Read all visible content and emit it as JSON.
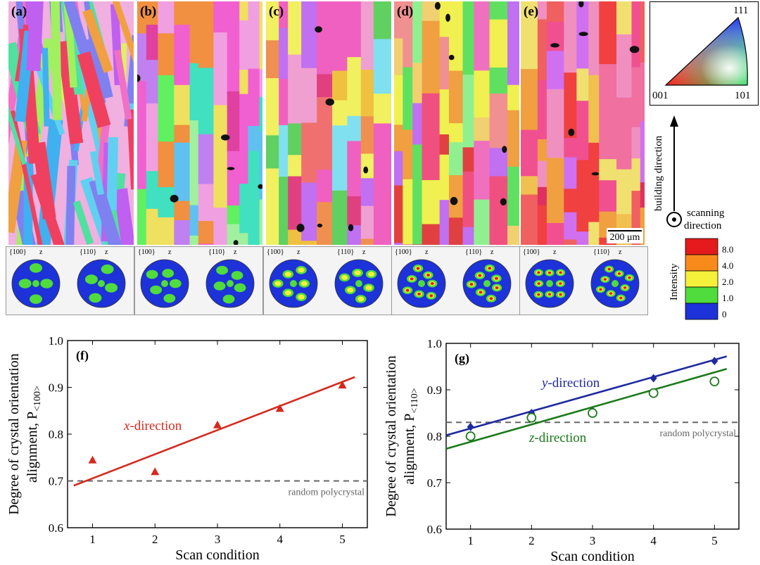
{
  "panels": [
    {
      "label": "(a)",
      "pf_labels": [
        "{100}",
        "z",
        "{110}",
        "z"
      ]
    },
    {
      "label": "(b)",
      "pf_labels": [
        "{100}",
        "z",
        "{110}",
        "z"
      ]
    },
    {
      "label": "(c)",
      "pf_labels": [
        "{100}",
        "z",
        "{110}",
        "z"
      ]
    },
    {
      "label": "(d)",
      "pf_labels": [
        "{100}",
        "z",
        "{110}",
        "z"
      ]
    },
    {
      "label": "(e)",
      "pf_labels": [
        "{100}",
        "z",
        "{110}",
        "z"
      ]
    }
  ],
  "scale_bar": "200 μm",
  "ipf_key": {
    "corner_top": "111",
    "corner_left": "001",
    "corner_right": "101"
  },
  "direction_key": {
    "building": "building direction",
    "scanning_line1": "scanning",
    "scanning_line2": "direction"
  },
  "intensity_legend": {
    "title": "Intensity",
    "levels": [
      "8.0",
      "4.0",
      "2.0",
      "1.0",
      "0"
    ],
    "colors": [
      "#e41a1c",
      "#f88a1c",
      "#f5f03a",
      "#4fdc3c",
      "#1d32d8"
    ]
  },
  "chart_data": [
    {
      "type": "scatter",
      "panel_label": "(f)",
      "xlabel": "Scan condition",
      "ylabel_line1": "Degree of crystal orientation",
      "ylabel_line2": "alignment, P",
      "ylabel_sub": "<100>",
      "xlim": [
        0.6,
        5.4
      ],
      "ylim": [
        0.6,
        1.0
      ],
      "xticks": [
        1,
        2,
        3,
        4,
        5
      ],
      "yticks": [
        0.6,
        0.7,
        0.8,
        0.9,
        1.0
      ],
      "ytick_labels": [
        "0.6",
        "0.7",
        "0.8",
        "0.9",
        "1.0"
      ],
      "series": [
        {
          "name": "x-direction",
          "marker": "triangle",
          "color": "#d42a1e",
          "x": [
            1,
            2,
            3,
            4,
            5
          ],
          "y": [
            0.745,
            0.72,
            0.82,
            0.855,
            0.905
          ],
          "fit": [
            [
              0.7,
              0.69
            ],
            [
              5.2,
              0.922
            ]
          ]
        }
      ],
      "reference": {
        "label": "random polycrystal",
        "y": 0.7,
        "color": "#666666"
      }
    },
    {
      "type": "scatter",
      "panel_label": "(g)",
      "xlabel": "Scan condition",
      "ylabel_line1": "Degree of crystal orientation",
      "ylabel_line2": "alignment, P",
      "ylabel_sub": "<110>",
      "xlim": [
        0.6,
        5.4
      ],
      "ylim": [
        0.6,
        1.0
      ],
      "xticks": [
        1,
        2,
        3,
        4,
        5
      ],
      "yticks": [
        0.6,
        0.7,
        0.8,
        0.9,
        1.0
      ],
      "ytick_labels": [
        "0.6",
        "0.7",
        "0.8",
        "0.9",
        "1.0"
      ],
      "series": [
        {
          "name": "y-direction",
          "marker": "diamond",
          "color": "#1f2aa0",
          "x": [
            1,
            2,
            3,
            4,
            5
          ],
          "y": [
            0.82,
            0.85,
            0.855,
            0.925,
            0.962
          ],
          "fit": [
            [
              0.6,
              0.802
            ],
            [
              5.2,
              0.972
            ]
          ]
        },
        {
          "name": "z-direction",
          "marker": "circle",
          "color": "#1a7a1a",
          "x": [
            1,
            2,
            3,
            4,
            5
          ],
          "y": [
            0.8,
            0.84,
            0.85,
            0.893,
            0.918
          ],
          "fit": [
            [
              0.6,
              0.773
            ],
            [
              5.2,
              0.945
            ]
          ]
        }
      ],
      "reference": {
        "label": "random polycrystal",
        "y": 0.83,
        "color": "#666666"
      }
    }
  ]
}
